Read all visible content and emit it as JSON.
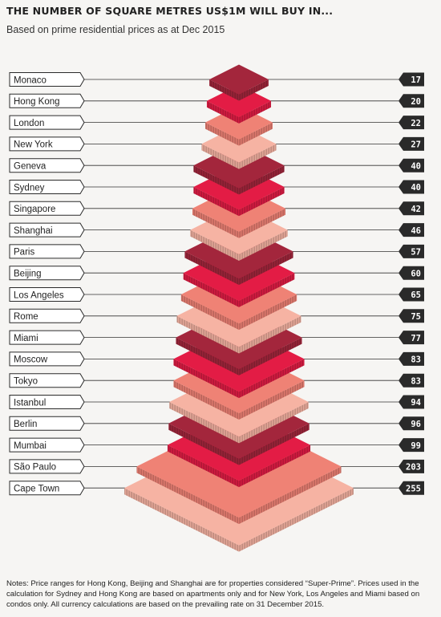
{
  "title": "THE NUMBER OF SQUARE METRES US$1M WILL BUY IN...",
  "subtitle": "Based on prime residential prices as at Dec 2015",
  "notes": "Notes: Price ranges for Hong Kong, Beijing and Shanghai are for properties considered “Super-Prime”. Prices used in the calculation for Sydney and Hong Kong are based on apartments only and for New York, Los Angeles and Miami based on condos only. All currency calculations are based on the prevailing rate on 31 December 2015.",
  "colors": {
    "palette": [
      "#a3263c",
      "#e31c45",
      "#ef8275",
      "#f6b3a3"
    ],
    "value_tag_bg": "#2a2a2a",
    "value_tag_text": "#ffffff",
    "line": "#333333"
  },
  "chart_data": {
    "type": "pyramid",
    "unit": "square metres",
    "categories": [
      "Monaco",
      "Hong Kong",
      "London",
      "New York",
      "Geneva",
      "Sydney",
      "Singapore",
      "Shanghai",
      "Paris",
      "Beijing",
      "Los Angeles",
      "Rome",
      "Miami",
      "Moscow",
      "Tokyo",
      "Istanbul",
      "Berlin",
      "Mumbai",
      "São Paulo",
      "Cape Town"
    ],
    "values": [
      17,
      20,
      22,
      27,
      40,
      40,
      42,
      46,
      57,
      60,
      65,
      75,
      77,
      83,
      83,
      94,
      96,
      99,
      203,
      255
    ]
  }
}
